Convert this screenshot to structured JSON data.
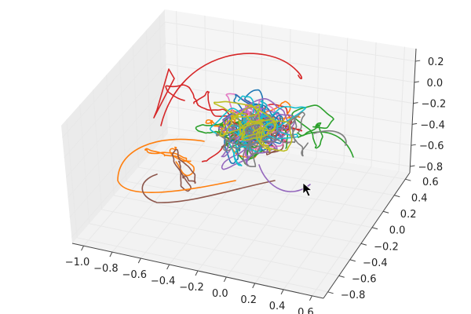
{
  "chart_data": {
    "type": "line",
    "title": "",
    "xlabel": "",
    "ylabel": "",
    "zlabel": "",
    "grid": true,
    "legend": false,
    "x_ticks": [
      "−1.0",
      "−0.8",
      "−0.6",
      "−0.4",
      "−0.2",
      "0.0",
      "0.2",
      "0.4",
      "0.6"
    ],
    "y_ticks": [
      "−0.8",
      "−0.6",
      "−0.4",
      "−0.2",
      "0.0",
      "0.2",
      "0.4",
      "0.6"
    ],
    "z_ticks": [
      "−0.8",
      "−0.6",
      "−0.4",
      "−0.2",
      "0.0",
      "0.2"
    ],
    "xlim": [
      -1.1,
      0.7
    ],
    "ylim": [
      -0.9,
      0.7
    ],
    "zlim": [
      -0.85,
      0.35
    ],
    "series": [
      {
        "color": "#d62728",
        "dominant": "top-left loop"
      },
      {
        "color": "#ff7f0e",
        "dominant": "left sweep"
      },
      {
        "color": "#8c564b",
        "dominant": "bottom-left"
      },
      {
        "color": "#e377c2",
        "dominant": "center"
      },
      {
        "color": "#2ca02c",
        "dominant": "right"
      },
      {
        "color": "#1f77b4",
        "dominant": "center"
      },
      {
        "color": "#9467bd",
        "dominant": "lower center"
      },
      {
        "color": "#17becf",
        "dominant": "center-right"
      },
      {
        "color": "#7f7f7f",
        "dominant": "right"
      },
      {
        "color": "#bcbd22",
        "dominant": "center"
      }
    ]
  }
}
